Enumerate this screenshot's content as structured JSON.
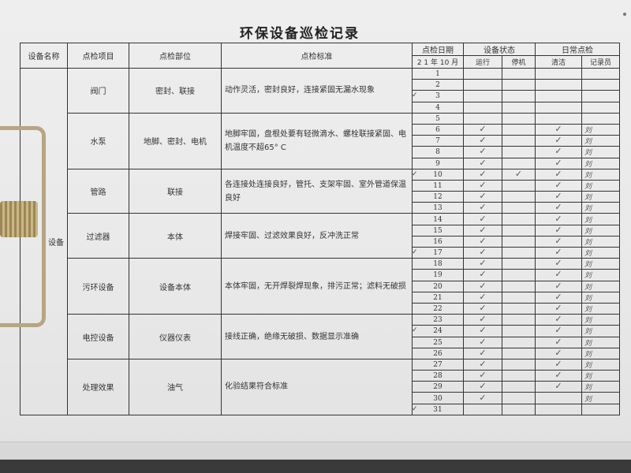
{
  "title": "环保设备巡检记录",
  "headers": {
    "equipment_name": "设备名称",
    "check_item": "点检项目",
    "check_part": "点检部位",
    "check_standard": "点检标准",
    "check_date": "点检日期",
    "date_line": "2 1 年 10 月",
    "equipment_status": "设备状态",
    "running": "运行",
    "stopped": "停机",
    "daily_check": "日常点检",
    "cleaning": "清洁",
    "recorder": "记录员"
  },
  "equipment_group": "设备",
  "items": [
    {
      "item": "阀门",
      "part": "密封、联接",
      "standard": "动作灵活，密封良好，连接紧固无漏水现象",
      "days": 4
    },
    {
      "item": "水泵",
      "part": "地脚、密封、电机",
      "standard": "地脚牢固，盘根处要有轻微滴水、螺栓联接紧固、电机温度不超65° C",
      "days": 5
    },
    {
      "item": "管路",
      "part": "联接",
      "standard": "各连接处连接良好，管托、支架牢固、室外管道保温良好",
      "days": 4
    },
    {
      "item": "过滤器",
      "part": "本体",
      "standard": "焊接牢固、过滤效果良好，反冲洗正常",
      "days": 4
    },
    {
      "item": "污环设备",
      "part": "设备本体",
      "standard": "本体牢固，无开焊裂焊现象，排污正常；滤料无破损",
      "days": 5
    },
    {
      "item": "电控设备",
      "part": "仪器仪表",
      "standard": "接线正确，绝缘无破损、数据显示准确",
      "days": 4
    },
    {
      "item": "处理效果",
      "part": "油气",
      "standard": "化验结果符合标准",
      "days": 5
    }
  ],
  "check_mark": "✓",
  "recorder_mark": "刘",
  "records": {
    "days": [
      1,
      2,
      3,
      4,
      5,
      6,
      7,
      8,
      9,
      10,
      11,
      12,
      13,
      14,
      15,
      16,
      17,
      18,
      19,
      20,
      21,
      22,
      23,
      24,
      25,
      26,
      27,
      28,
      29,
      30,
      31
    ],
    "margin_checked_days": [
      3,
      10,
      17,
      24,
      31
    ],
    "running_checked_days": [
      6,
      7,
      8,
      9,
      10,
      11,
      12,
      13,
      14,
      15,
      16,
      17,
      18,
      19,
      20,
      21,
      22,
      23,
      24,
      25,
      26,
      27,
      28,
      29,
      30
    ],
    "stopped_checked_days": [
      10
    ],
    "cleaning_checked_days": [
      6,
      7,
      8,
      9,
      10,
      11,
      12,
      13,
      14,
      15,
      16,
      17,
      18,
      19,
      20,
      21,
      22,
      23,
      24,
      25,
      26,
      27,
      28,
      29
    ],
    "recorder_signed_days": [
      6,
      7,
      8,
      9,
      10,
      11,
      12,
      13,
      14,
      15,
      16,
      17,
      18,
      19,
      20,
      21,
      22,
      23,
      24,
      25,
      26,
      27,
      28,
      29,
      30
    ]
  }
}
